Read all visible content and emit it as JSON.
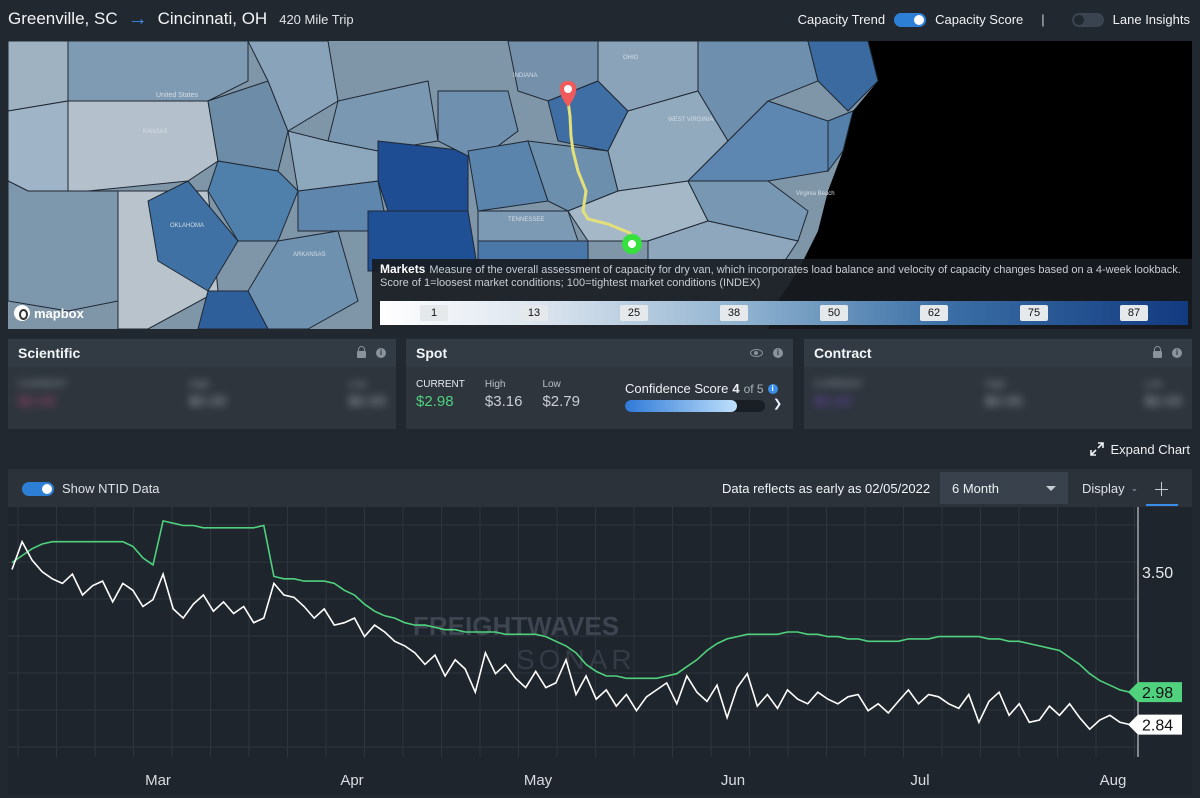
{
  "header": {
    "origin": "Greenville, SC",
    "destination": "Cincinnati, OH",
    "trip": "420 Mile Trip",
    "capacity_trend_label": "Capacity Trend",
    "capacity_score_label": "Capacity Score",
    "separator": "|",
    "lane_insights_label": "Lane Insights",
    "capacity_toggle_on": true,
    "lane_insights_on": false
  },
  "map": {
    "legend_title": "Markets",
    "legend_description": "Measure of the overall assessment of capacity for dry van, which incorporates load balance and velocity of capacity changes based on a 4-week lookback. Score of 1=loosest market conditions; 100=tightest market conditions (INDEX)",
    "legend_ticks": [
      "1",
      "13",
      "25",
      "38",
      "50",
      "62",
      "75",
      "87"
    ],
    "attribution": "mapbox",
    "labels": [
      "United States",
      "INDIANA",
      "OHIO",
      "WEST VIRGINIA",
      "KANSAS",
      "TENNESSEE",
      "ARKANSAS",
      "OKLAHOMA",
      "Virginia Beach"
    ]
  },
  "cards": {
    "scientific": {
      "title": "Scientific",
      "current_label": "CURRENT",
      "current": "$0.00",
      "high_label": "High",
      "high": "$0.00",
      "low_label": "Low",
      "low": "$0.00"
    },
    "spot": {
      "title": "Spot",
      "current_label": "CURRENT",
      "current": "$2.98",
      "high_label": "High",
      "high": "$3.16",
      "low_label": "Low",
      "low": "$2.79",
      "confidence_label": "Confidence Score",
      "confidence_value": "4",
      "confidence_of": "of 5",
      "confidence_fraction": 0.8
    },
    "contract": {
      "title": "Contract",
      "current_label": "CURRENT",
      "current": "$0.00",
      "high_label": "High",
      "high": "$0.00",
      "low_label": "Low",
      "low": "$0.00"
    }
  },
  "expand_chart_label": "Expand Chart",
  "chart_toolbar": {
    "show_ntid_label": "Show NTID Data",
    "reflects_label": "Data reflects as early as 02/05/2022",
    "range_selected": "6 Month",
    "display_label": "Display"
  },
  "watermark": {
    "line1": "FREIGHTWAVES",
    "line2": "SONAR"
  },
  "colors": {
    "accent": "#2d7fd6",
    "green_series": "#4fd17e",
    "white_series": "#ffffff",
    "background": "#22282f"
  },
  "chart_data": {
    "type": "line",
    "x_ticks": [
      "Mar",
      "Apr",
      "May",
      "Jun",
      "Jul",
      "Aug"
    ],
    "y_ticks": [
      3.5
    ],
    "ylim": [
      2.7,
      3.78
    ],
    "series": [
      {
        "color": "#4fd17e",
        "end_label": "2.98",
        "values": [
          3.54,
          3.57,
          3.6,
          3.62,
          3.63,
          3.63,
          3.63,
          3.63,
          3.63,
          3.63,
          3.63,
          3.63,
          3.61,
          3.56,
          3.53,
          3.72,
          3.71,
          3.7,
          3.7,
          3.69,
          3.69,
          3.69,
          3.69,
          3.69,
          3.69,
          3.7,
          3.48,
          3.47,
          3.47,
          3.46,
          3.46,
          3.46,
          3.45,
          3.42,
          3.4,
          3.36,
          3.33,
          3.31,
          3.3,
          3.28,
          3.27,
          3.27,
          3.26,
          3.25,
          3.25,
          3.24,
          3.24,
          3.24,
          3.24,
          3.23,
          3.23,
          3.23,
          3.23,
          3.22,
          3.2,
          3.18,
          3.15,
          3.1,
          3.07,
          3.05,
          3.05,
          3.04,
          3.04,
          3.04,
          3.04,
          3.05,
          3.06,
          3.09,
          3.12,
          3.16,
          3.19,
          3.21,
          3.22,
          3.23,
          3.23,
          3.23,
          3.23,
          3.24,
          3.24,
          3.23,
          3.23,
          3.22,
          3.22,
          3.21,
          3.21,
          3.2,
          3.2,
          3.2,
          3.2,
          3.21,
          3.21,
          3.21,
          3.22,
          3.22,
          3.22,
          3.22,
          3.22,
          3.21,
          3.21,
          3.2,
          3.2,
          3.19,
          3.18,
          3.17,
          3.16,
          3.13,
          3.1,
          3.06,
          3.03,
          3.01,
          2.99,
          2.98
        ]
      },
      {
        "color": "#ffffff",
        "end_label": "2.84",
        "values": [
          3.51,
          3.63,
          3.55,
          3.5,
          3.47,
          3.45,
          3.49,
          3.4,
          3.44,
          3.46,
          3.37,
          3.45,
          3.42,
          3.35,
          3.38,
          3.49,
          3.34,
          3.3,
          3.36,
          3.4,
          3.33,
          3.37,
          3.32,
          3.35,
          3.28,
          3.3,
          3.45,
          3.4,
          3.39,
          3.35,
          3.3,
          3.34,
          3.27,
          3.28,
          3.3,
          3.22,
          3.27,
          3.24,
          3.2,
          3.18,
          3.15,
          3.1,
          3.14,
          3.05,
          3.12,
          3.08,
          2.98,
          3.15,
          3.06,
          3.1,
          3.04,
          3.0,
          3.07,
          3.0,
          3.02,
          3.12,
          2.97,
          3.05,
          2.95,
          2.99,
          2.92,
          2.97,
          2.9,
          2.96,
          2.99,
          3.02,
          2.93,
          3.05,
          2.98,
          2.94,
          3.01,
          2.87,
          3.0,
          3.06,
          2.92,
          2.97,
          2.91,
          2.99,
          2.95,
          2.93,
          2.98,
          2.95,
          2.93,
          2.96,
          2.97,
          2.9,
          2.93,
          2.89,
          2.94,
          2.99,
          2.93,
          2.97,
          2.96,
          2.93,
          2.91,
          2.97,
          2.85,
          2.94,
          2.98,
          2.88,
          2.93,
          2.85,
          2.86,
          2.92,
          2.88,
          2.93,
          2.87,
          2.82,
          2.86,
          2.88,
          2.85,
          2.84
        ]
      }
    ]
  }
}
